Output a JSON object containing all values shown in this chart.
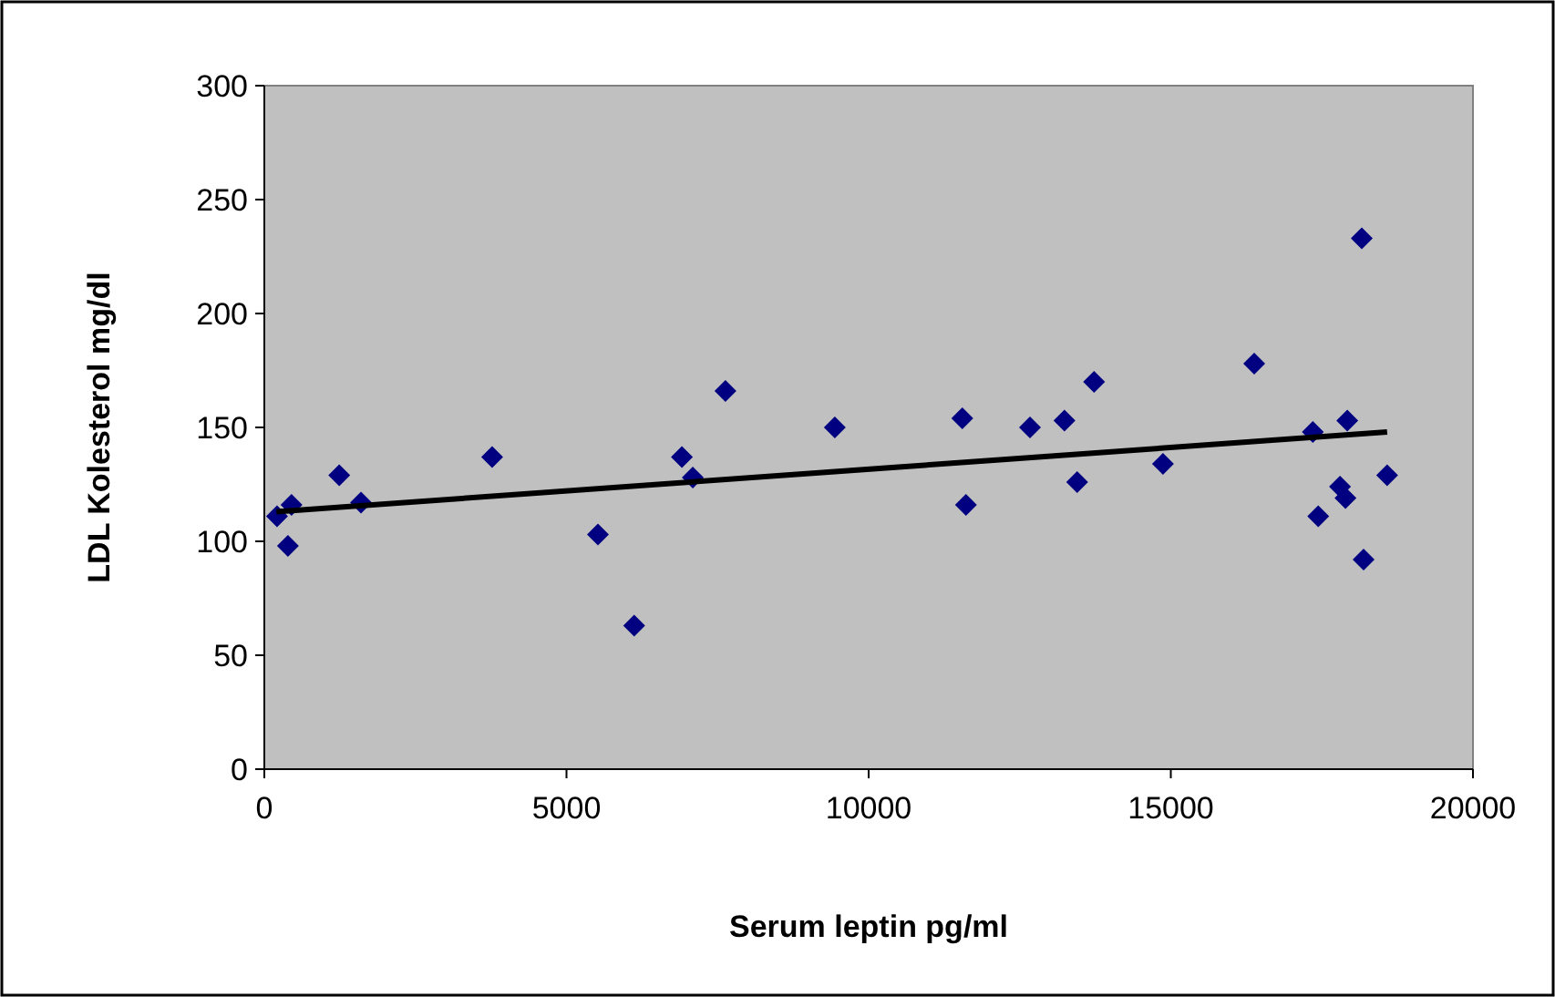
{
  "chart_data": {
    "type": "scatter",
    "xlabel": "Serum leptin pg/ml",
    "ylabel": "LDL Kolesterol mg/dl",
    "xlim": [
      0,
      20000
    ],
    "ylim": [
      0,
      300
    ],
    "xticks": [
      0,
      5000,
      10000,
      15000,
      20000
    ],
    "yticks": [
      0,
      50,
      100,
      150,
      200,
      250,
      300
    ],
    "grid": false,
    "series": [
      {
        "color": "#000080",
        "marker": "diamond",
        "x": [
          210,
          450,
          390,
          1240,
          1600,
          3770,
          5520,
          6120,
          6910,
          7090,
          7630,
          9440,
          11550,
          11610,
          12670,
          13240,
          13450,
          13730,
          14870,
          16380,
          17350,
          17440,
          17800,
          17890,
          17920,
          18160,
          18190,
          18580
        ],
        "values": [
          111,
          116,
          98,
          129,
          117,
          137,
          103,
          63,
          137,
          128,
          166,
          150,
          154,
          116,
          150,
          153,
          126,
          170,
          134,
          178,
          148,
          111,
          124,
          119,
          153,
          233,
          92,
          129
        ]
      },
      {
        "type": "line",
        "color": "#000000",
        "marker": "none",
        "line_style": "solid",
        "x": [
          200,
          18580
        ],
        "values": [
          113,
          148
        ]
      }
    ]
  }
}
